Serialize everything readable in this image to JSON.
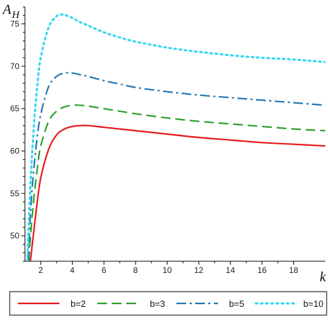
{
  "chart_data": {
    "type": "line",
    "xlabel_main": "k",
    "ylabel_main": "A",
    "ylabel_sub": "H",
    "xlim": [
      1,
      20
    ],
    "ylim": [
      47,
      77
    ],
    "x_ticks": [
      2,
      4,
      6,
      8,
      10,
      12,
      14,
      16,
      18
    ],
    "y_ticks": [
      50,
      55,
      60,
      65,
      70,
      75
    ],
    "legend_position": "bottom",
    "series": [
      {
        "name": "b=2",
        "color": "#e41a1c",
        "dash": "solid",
        "x": [
          1.35,
          1.5,
          1.75,
          2.0,
          2.5,
          3.0,
          3.5,
          4.0,
          4.5,
          5.0,
          6.0,
          7.0,
          8.0,
          10.0,
          12.0,
          14.0,
          16.0,
          18.0,
          20.0
        ],
        "y": [
          47.0,
          49.5,
          53.5,
          56.8,
          60.2,
          61.9,
          62.6,
          62.9,
          63.0,
          63.0,
          62.8,
          62.6,
          62.4,
          62.0,
          61.6,
          61.3,
          61.0,
          60.8,
          60.6
        ]
      },
      {
        "name": "b=3",
        "color": "#2ca02c",
        "dash": "long-dash",
        "x": [
          1.25,
          1.4,
          1.6,
          1.8,
          2.0,
          2.5,
          3.0,
          3.5,
          4.0,
          4.5,
          5.0,
          6.0,
          7.0,
          8.0,
          10.0,
          12.0,
          14.0,
          16.0,
          18.0,
          20.0
        ],
        "y": [
          47.0,
          51.0,
          55.0,
          58.2,
          60.6,
          63.5,
          64.7,
          65.2,
          65.4,
          65.4,
          65.3,
          65.0,
          64.7,
          64.4,
          63.9,
          63.5,
          63.2,
          62.9,
          62.6,
          62.4
        ]
      },
      {
        "name": "b=5",
        "color": "#1f77b4",
        "dash": "dash-dot",
        "x": [
          1.2,
          1.35,
          1.5,
          1.75,
          2.0,
          2.5,
          3.0,
          3.5,
          4.0,
          4.5,
          5.0,
          6.0,
          7.0,
          8.0,
          10.0,
          12.0,
          14.0,
          16.0,
          18.0,
          20.0
        ],
        "y": [
          47.0,
          52.5,
          56.5,
          61.2,
          64.3,
          67.6,
          68.8,
          69.2,
          69.2,
          69.0,
          68.8,
          68.3,
          67.9,
          67.5,
          67.0,
          66.6,
          66.3,
          66.0,
          65.7,
          65.4
        ]
      },
      {
        "name": "b=10",
        "color": "#33d6f0",
        "dash": "dotted",
        "x": [
          1.15,
          1.3,
          1.45,
          1.6,
          1.8,
          2.0,
          2.5,
          3.0,
          3.3,
          3.6,
          4.0,
          4.5,
          5.0,
          6.0,
          7.0,
          8.0,
          10.0,
          12.0,
          14.0,
          16.0,
          18.0,
          20.0
        ],
        "y": [
          47.0,
          54.0,
          59.5,
          63.8,
          68.0,
          71.0,
          74.6,
          75.9,
          76.1,
          76.0,
          75.7,
          75.2,
          74.8,
          74.0,
          73.4,
          72.9,
          72.2,
          71.7,
          71.3,
          71.0,
          70.8,
          70.5
        ]
      }
    ]
  }
}
